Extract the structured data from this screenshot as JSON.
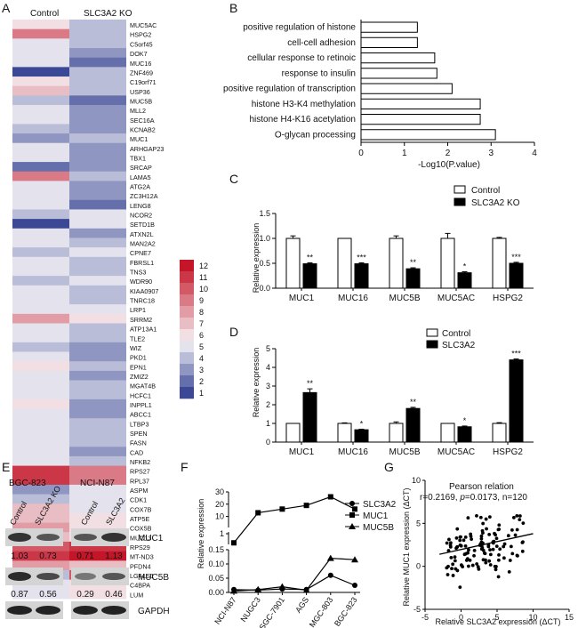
{
  "panel_labels": [
    "A",
    "B",
    "C",
    "D",
    "E",
    "F",
    "G"
  ],
  "chart_data": [
    {
      "panel": "A",
      "type": "heatmap",
      "columns": [
        "Control",
        "SLC3A2 KO"
      ],
      "genes": [
        "MUC5AC",
        "HSPG2",
        "C5orf45",
        "DOK7",
        "MUC16",
        "ZNF469",
        "C19orf71",
        "USP36",
        "MUC5B",
        "MLL2",
        "SEC16A",
        "KCNAB2",
        "MUC1",
        "ARHGAP23",
        "TBX1",
        "SRCAP",
        "LAMA5",
        "ATG2A",
        "ZC3H12A",
        "LENG8",
        "NCOR2",
        "SETD1B",
        "ATXN2L",
        "MAN2A2",
        "CPNE7",
        "FBRSL1",
        "TNS3",
        "WDR90",
        "KIAA0907",
        "TNRC18",
        "LRP1",
        "SRRM2",
        "ATP13A1",
        "TLE2",
        "WIZ",
        "PKD1",
        "EPN1",
        "ZMIZ2",
        "MGAT4B",
        "HCFC1",
        "INPPL1",
        "ABCC1",
        "LTBP3",
        "SPEN",
        "FASN",
        "CAD",
        "NFKB2",
        "RPS27",
        "RPL37",
        "ASPM",
        "CDK1",
        "COX7B",
        "ATP5E",
        "COX5B",
        "MUC13",
        "RPS29",
        "MT-ND3",
        "PFDN4",
        "LGALS1",
        "C4BPA",
        "LUM"
      ],
      "values": [
        [
          6,
          4
        ],
        [
          9,
          4
        ],
        [
          5,
          4
        ],
        [
          5,
          3
        ],
        [
          5,
          2
        ],
        [
          1,
          4
        ],
        [
          6,
          4
        ],
        [
          7,
          4
        ],
        [
          4,
          2
        ],
        [
          5,
          3
        ],
        [
          5,
          3
        ],
        [
          4,
          3
        ],
        [
          3,
          4
        ],
        [
          5,
          3
        ],
        [
          5,
          3
        ],
        [
          2,
          3
        ],
        [
          9,
          4
        ],
        [
          5,
          3
        ],
        [
          5,
          3
        ],
        [
          5,
          2
        ],
        [
          4,
          5
        ],
        [
          1,
          5
        ],
        [
          5,
          3
        ],
        [
          5,
          4
        ],
        [
          4,
          5
        ],
        [
          5,
          4
        ],
        [
          5,
          4
        ],
        [
          4,
          5
        ],
        [
          5,
          4
        ],
        [
          5,
          4
        ],
        [
          5,
          5
        ],
        [
          8,
          6
        ],
        [
          5,
          4
        ],
        [
          5,
          4
        ],
        [
          4,
          3
        ],
        [
          5,
          3
        ],
        [
          6,
          4
        ],
        [
          5,
          3
        ],
        [
          5,
          4
        ],
        [
          5,
          4
        ],
        [
          6,
          3
        ],
        [
          5,
          3
        ],
        [
          5,
          4
        ],
        [
          5,
          4
        ],
        [
          5,
          4
        ],
        [
          5,
          3
        ],
        [
          5,
          4
        ],
        [
          11,
          9
        ],
        [
          11,
          9
        ],
        [
          3,
          5
        ],
        [
          4,
          5
        ],
        [
          7,
          5
        ],
        [
          7,
          6
        ],
        [
          8,
          6
        ],
        [
          7,
          6
        ],
        [
          10,
          11
        ],
        [
          11,
          12
        ],
        [
          8,
          7
        ],
        [
          4,
          10
        ],
        [
          5,
          6
        ],
        [
          5,
          6
        ]
      ],
      "legend": [
        "12",
        "11",
        "10",
        "9",
        "8",
        "7",
        "6",
        "5",
        "4",
        "3",
        "2",
        "1"
      ]
    },
    {
      "panel": "B",
      "type": "bar",
      "orientation": "horizontal",
      "categories": [
        "positive regulation of histone",
        "cell-cell adhesion",
        "cellular response to retinoic",
        "response to insulin",
        "positive regulation of transcription",
        "histone H3-K4 methylation",
        "histone H4-K16 acetylation",
        "O-glycan processing"
      ],
      "values": [
        1.3,
        1.3,
        1.7,
        1.75,
        2.1,
        2.75,
        2.75,
        3.1
      ],
      "xlabel": "-Log10(P.value)",
      "xlim": [
        0,
        4
      ],
      "xticks": [
        "0",
        "1",
        "2",
        "3",
        "4"
      ]
    },
    {
      "panel": "C",
      "type": "bar",
      "categories": [
        "MUC1",
        "MUC16",
        "MUC5B",
        "MUC5AC",
        "HSPG2"
      ],
      "series": [
        {
          "name": "Control",
          "values": [
            1.0,
            1.0,
            1.0,
            1.0,
            1.0
          ],
          "errors": [
            0.05,
            0,
            0.05,
            0.1,
            0.02
          ]
        },
        {
          "name": "SLC3A2 KO",
          "values": [
            0.49,
            0.49,
            0.39,
            0.31,
            0.5
          ],
          "errors": [
            0.02,
            0.02,
            0.02,
            0.02,
            0.02
          ]
        }
      ],
      "significance": [
        "**",
        "***",
        "**",
        "*",
        "***"
      ],
      "ylabel": "Relative expression",
      "ylim": [
        0,
        1.5
      ],
      "yticks": [
        "0.0",
        "0.5",
        "1.0",
        "1.5"
      ]
    },
    {
      "panel": "D",
      "type": "bar",
      "categories": [
        "MUC1",
        "MUC16",
        "MUC5B",
        "MUC5AC",
        "HSPG2"
      ],
      "series": [
        {
          "name": "Control",
          "values": [
            1.0,
            1.0,
            1.0,
            1.0,
            1.0
          ],
          "errors": [
            0,
            0.03,
            0.08,
            0,
            0.04
          ]
        },
        {
          "name": "SLC3A2",
          "values": [
            2.65,
            0.66,
            1.8,
            0.82,
            4.4
          ],
          "errors": [
            0.2,
            0.03,
            0.06,
            0.04,
            0.05
          ]
        }
      ],
      "significance": [
        "**",
        "*",
        "**",
        "*",
        "***"
      ],
      "ylabel": "Relative expression",
      "ylim": [
        0,
        5
      ],
      "yticks": [
        "0",
        "1",
        "2",
        "3",
        "4",
        "5"
      ]
    },
    {
      "panel": "F",
      "type": "line",
      "categories": [
        "NCI-N87",
        "NUGC3",
        "SGC-7901",
        "AGS",
        "MGC-803",
        "BGC-823"
      ],
      "series": [
        {
          "name": "SLC3A2",
          "marker": "circle",
          "values": [
            0.01,
            0.008,
            0.012,
            0.01,
            0.06,
            0.025
          ]
        },
        {
          "name": "MUC1",
          "marker": "square",
          "values": [
            0.3,
            13,
            16,
            19,
            26,
            16
          ]
        },
        {
          "name": "MUC5B",
          "marker": "triangle",
          "values": [
            0.005,
            0.01,
            0.02,
            0.008,
            0.12,
            0.115
          ]
        }
      ],
      "ylabel": "Relative expression",
      "yticks_upper": [
        "10",
        "20",
        "30"
      ],
      "yticks_break": [
        "1"
      ],
      "yticks_lower": [
        "0.00",
        "0.05",
        "0.10",
        "0.15"
      ]
    },
    {
      "panel": "G",
      "type": "scatter",
      "title": "Pearson relation",
      "stat_prefix": "r=0.2169, ",
      "stat_p_symbol": "p",
      "stat_suffix": "=0.0173, n=120",
      "xlabel": "Relative SLC3A2 expression (ΔCT)",
      "ylabel": "Relative MUC1 expression (ΔCT)",
      "xlim": [
        -5,
        15
      ],
      "ylim": [
        -5,
        10
      ],
      "xticks": [
        "-5",
        "0",
        "5",
        "10",
        "15"
      ],
      "yticks": [
        "-5",
        "0",
        "5",
        "10"
      ],
      "fit_line": {
        "x": [
          -3,
          10
        ],
        "y": [
          1.4,
          3.8
        ]
      }
    }
  ],
  "western_blot": {
    "left_group": {
      "title": "BGC-823",
      "lanes": [
        "Control",
        "SLC3A2 KO"
      ],
      "muc1": [
        "1.03",
        "0.73"
      ],
      "muc5b": [
        "0.87",
        "0.56"
      ]
    },
    "right_group": {
      "title": "NCI-N87",
      "lanes": [
        "Control",
        "SLC3A2"
      ],
      "muc1": [
        "0.71",
        "1.13"
      ],
      "muc5b": [
        "0.29",
        "0.46"
      ]
    },
    "bands": [
      "MUC1",
      "MUC5B",
      "GAPDH"
    ]
  }
}
